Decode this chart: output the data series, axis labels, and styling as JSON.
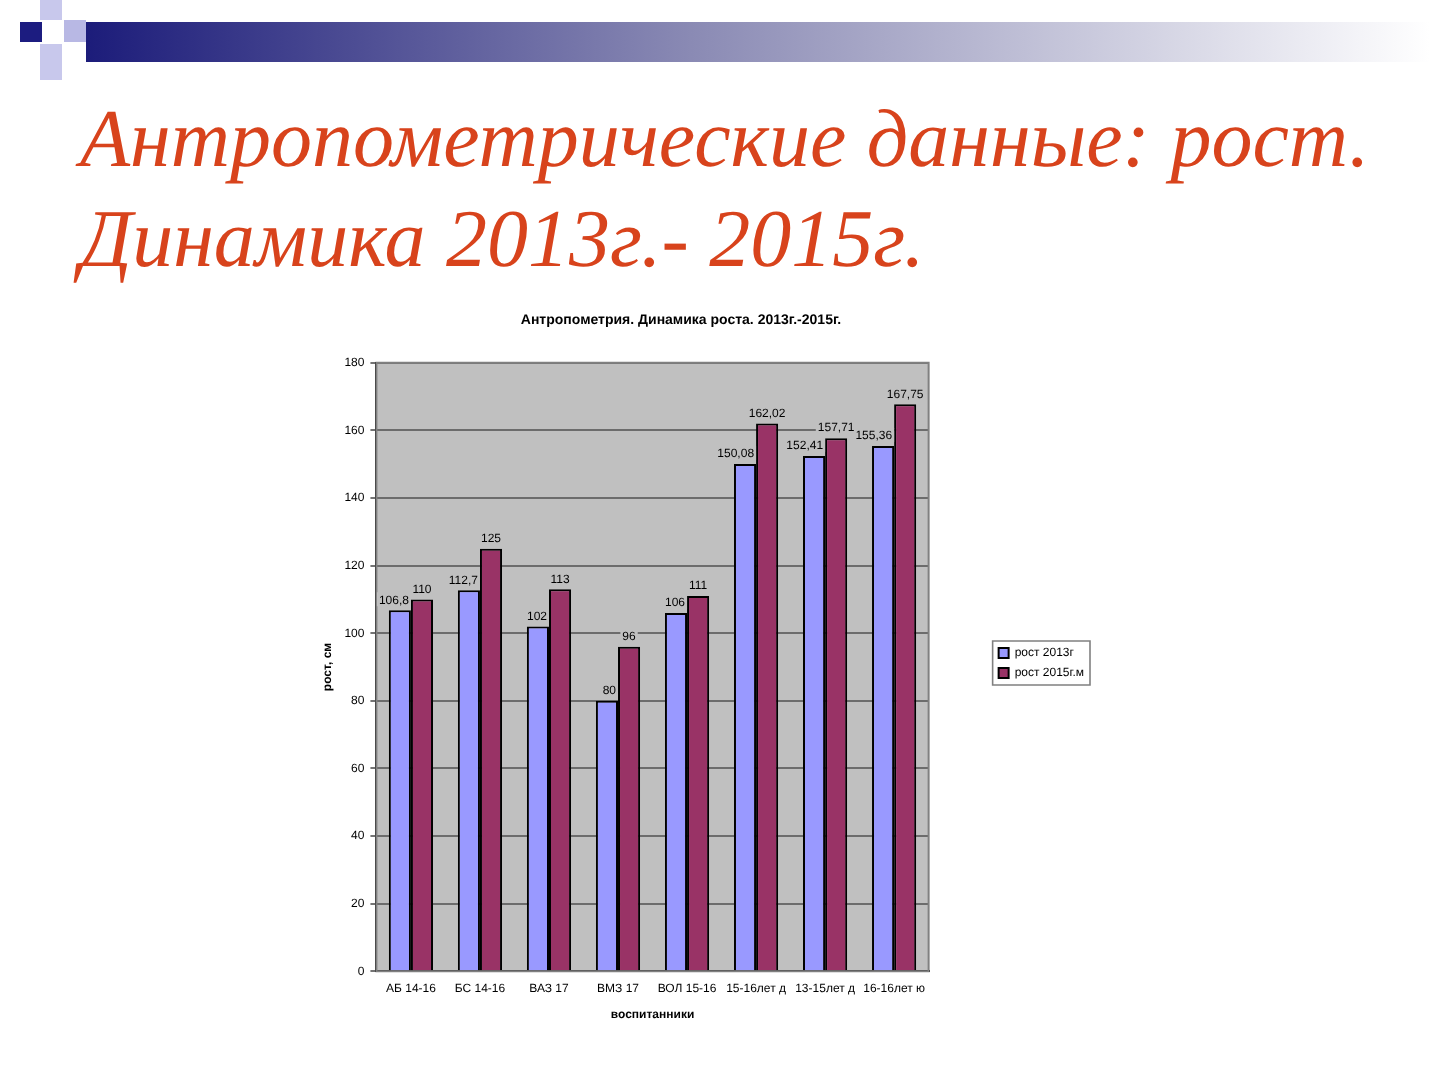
{
  "chart_data": {
    "type": "bar",
    "title": "Антропометрические данные: рост. Динамика 2013г.- 2015г.",
    "subtitle": "Антропометрия. Динамика роста. 2013г.-2015г.",
    "xlabel": "воспитанники",
    "ylabel": "рост, см",
    "categories": [
      "АБ 14-16",
      "БС 14-16",
      "ВАЗ 17",
      "ВМЗ 17",
      "ВОЛ 15-16",
      "15-16лет д",
      "13-15лет д",
      "16-16лет ю"
    ],
    "series": [
      {
        "name": "рост 2013г",
        "color": "#9999ff",
        "values": [
          106.8,
          112.7,
          102,
          80,
          106,
          150.08,
          152.41,
          155.36
        ],
        "value_labels": [
          "106,8",
          "112,7",
          "102",
          "80",
          "106",
          "150,08",
          "152,41",
          "155,36"
        ]
      },
      {
        "name": "рост 2015г.м",
        "color": "#993366",
        "values": [
          110,
          125,
          113,
          96,
          111,
          162.02,
          157.71,
          167.75
        ],
        "value_labels": [
          "110",
          "125",
          "113",
          "96",
          "111",
          "162,02",
          "157,71",
          "167,75"
        ]
      }
    ],
    "ylim": [
      0,
      180
    ],
    "yticks": [
      0,
      20,
      40,
      60,
      80,
      100,
      120,
      140,
      160,
      180
    ],
    "grid": "y",
    "legend": "right"
  }
}
